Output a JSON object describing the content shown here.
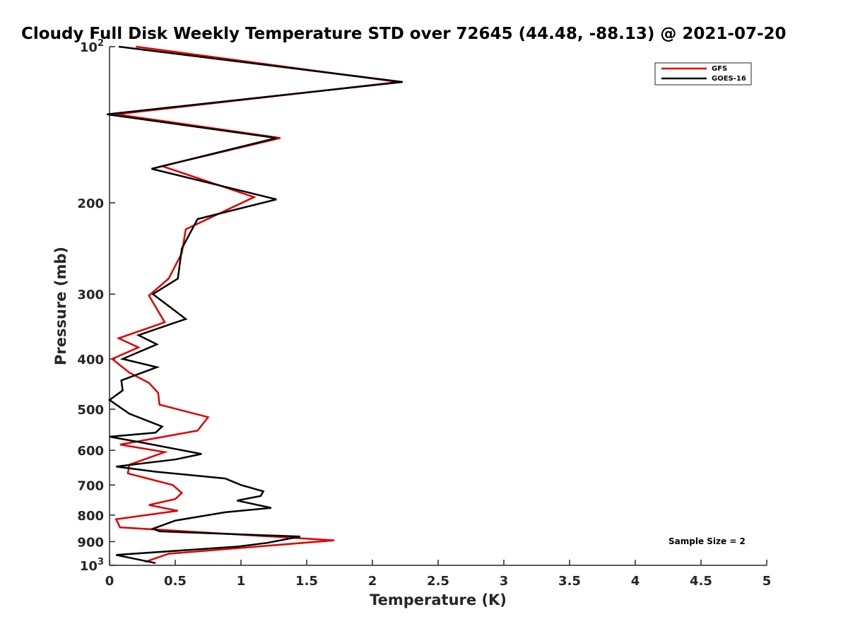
{
  "chart_data": {
    "type": "line",
    "title": "Cloudy Full Disk Weekly Temperature STD over 72645 (44.48, -88.13) @ 2021-07-20",
    "xlabel": "Temperature (K)",
    "ylabel": "Pressure (mb)",
    "xlim": [
      0,
      5
    ],
    "ylim": [
      100,
      1000
    ],
    "y_scale": "log",
    "y_reversed": true,
    "x_ticks": [
      "0",
      "0.5",
      "1",
      "1.5",
      "2",
      "2.5",
      "3",
      "3.5",
      "4",
      "4.5",
      "5"
    ],
    "y_ticks": [
      {
        "value": 100,
        "base": "10",
        "exp": "2"
      },
      {
        "value": 200,
        "label": "200"
      },
      {
        "value": 300,
        "label": "300"
      },
      {
        "value": 400,
        "label": "400"
      },
      {
        "value": 500,
        "label": "500"
      },
      {
        "value": 600,
        "label": "600"
      },
      {
        "value": 700,
        "label": "700"
      },
      {
        "value": 800,
        "label": "800"
      },
      {
        "value": 900,
        "label": "900"
      },
      {
        "value": 1000,
        "base": "10",
        "exp": "3"
      }
    ],
    "grid": false,
    "legend": "top-right",
    "annotation": "Sample Size = 2",
    "series": [
      {
        "name": "GFS",
        "color": "#e00000",
        "points": [
          [
            0.2,
            100
          ],
          [
            2.2,
            117
          ],
          [
            0.05,
            135
          ],
          [
            1.3,
            150
          ],
          [
            0.4,
            170
          ],
          [
            1.1,
            195
          ],
          [
            0.58,
            225
          ],
          [
            0.55,
            250
          ],
          [
            0.45,
            280
          ],
          [
            0.3,
            302
          ],
          [
            0.42,
            340
          ],
          [
            0.07,
            365
          ],
          [
            0.22,
            380
          ],
          [
            0.02,
            400
          ],
          [
            0.15,
            425
          ],
          [
            0.3,
            445
          ],
          [
            0.37,
            465
          ],
          [
            0.38,
            490
          ],
          [
            0.75,
            518
          ],
          [
            0.67,
            550
          ],
          [
            0.08,
            585
          ],
          [
            0.42,
            605
          ],
          [
            0.15,
            640
          ],
          [
            0.14,
            665
          ],
          [
            0.48,
            700
          ],
          [
            0.55,
            725
          ],
          [
            0.5,
            745
          ],
          [
            0.3,
            765
          ],
          [
            0.52,
            785
          ],
          [
            0.05,
            815
          ],
          [
            0.08,
            845
          ],
          [
            1.71,
            895
          ],
          [
            0.45,
            950
          ],
          [
            0.27,
            985
          ]
        ]
      },
      {
        "name": "GOES-16",
        "color": "#000000",
        "points": [
          [
            0.07,
            100
          ],
          [
            2.23,
            117
          ],
          [
            -0.02,
            135
          ],
          [
            1.27,
            150
          ],
          [
            0.32,
            172
          ],
          [
            1.27,
            197
          ],
          [
            0.67,
            215
          ],
          [
            0.55,
            245
          ],
          [
            0.52,
            280
          ],
          [
            0.33,
            300
          ],
          [
            0.58,
            335
          ],
          [
            0.22,
            360
          ],
          [
            0.36,
            375
          ],
          [
            0.1,
            400
          ],
          [
            0.36,
            415
          ],
          [
            0.09,
            440
          ],
          [
            0.1,
            460
          ],
          [
            0.0,
            480
          ],
          [
            0.15,
            510
          ],
          [
            0.4,
            540
          ],
          [
            0.35,
            555
          ],
          [
            0.0,
            565
          ],
          [
            0.25,
            580
          ],
          [
            0.7,
            610
          ],
          [
            0.5,
            625
          ],
          [
            0.05,
            645
          ],
          [
            0.35,
            660
          ],
          [
            0.88,
            680
          ],
          [
            1.0,
            700
          ],
          [
            1.17,
            720
          ],
          [
            1.15,
            735
          ],
          [
            0.97,
            750
          ],
          [
            1.23,
            775
          ],
          [
            0.88,
            790
          ],
          [
            0.5,
            820
          ],
          [
            0.33,
            850
          ],
          [
            0.38,
            860
          ],
          [
            1.45,
            880
          ],
          [
            1.2,
            905
          ],
          [
            0.98,
            920
          ],
          [
            0.05,
            955
          ],
          [
            0.35,
            990
          ]
        ]
      }
    ]
  }
}
